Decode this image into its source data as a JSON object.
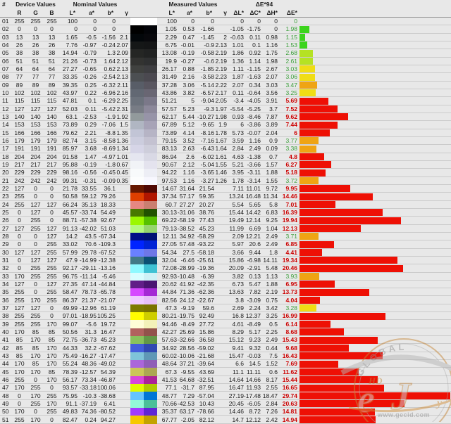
{
  "header": {
    "hash": "#",
    "group_labels": [
      "Device Values",
      "Nominal Values",
      "Measured Values",
      "ΔE*94"
    ],
    "sub": [
      "R",
      "G",
      "B",
      "L*",
      "a*",
      "b*",
      "γ",
      "L*",
      "a*",
      "b*",
      "γ",
      "ΔL*",
      "ΔC*",
      "ΔH*",
      "ΔE*"
    ]
  },
  "colors": {
    "bar_green": "#3cd41d",
    "bar_yellowgreen": "#b5e223",
    "bar_yellow": "#f0dd15",
    "bar_orange": "#efa414",
    "bar_red": "#ee1005",
    "de_good_text": "#3a9e3a",
    "de_bad_text": "#cc0000",
    "row_line": "#cbcbcb"
  },
  "rows": [
    [
      "01",
      "255",
      "255",
      "255",
      "100",
      "0",
      "0",
      "",
      "100",
      "0",
      "0",
      "",
      "0",
      "0",
      "0",
      "0"
    ],
    [
      "02",
      "0",
      "0",
      "0",
      "0",
      "0",
      "0",
      "",
      "1.05",
      "0.53",
      "-1.66",
      "",
      "-1.05",
      "-1.75",
      "0",
      "1.98"
    ],
    [
      "03",
      "13",
      "13",
      "13",
      "1.65",
      "-0.5",
      "-1.56",
      "2.1",
      "2.29",
      "0.47",
      "-1.45",
      "2",
      "-0.63",
      "0.11",
      "0.98",
      "1.15"
    ],
    [
      "04",
      "26",
      "26",
      "26",
      "7.76",
      "-0.97",
      "-0.24",
      "2.07",
      "6.75",
      "-0.01",
      "-0.9",
      "2.13",
      "1.01",
      "0.1",
      "1.16",
      "1.53"
    ],
    [
      "05",
      "38",
      "38",
      "38",
      "14.94",
      "-0.79",
      "1.3",
      "2.09",
      "13.08",
      "-0.19",
      "-0.58",
      "2.19",
      "1.86",
      "0.92",
      "1.75",
      "2.68"
    ],
    [
      "06",
      "51",
      "51",
      "51",
      "21.26",
      "-0.73",
      "1.64",
      "2.12",
      "19.9",
      "-0.27",
      "-0.6",
      "2.19",
      "1.36",
      "1.14",
      "1.98",
      "2.61"
    ],
    [
      "07",
      "64",
      "64",
      "64",
      "27.27",
      "-0.65",
      "0.62",
      "2.13",
      "26.17",
      "0.88",
      "-1.85",
      "2.19",
      "1.11",
      "-1.15",
      "2.67",
      "3.03"
    ],
    [
      "08",
      "77",
      "77",
      "77",
      "33.35",
      "-0.26",
      "-2.54",
      "2.13",
      "31.49",
      "2.16",
      "-3.58",
      "2.23",
      "1.87",
      "-1.63",
      "2.07",
      "3.06"
    ],
    [
      "09",
      "89",
      "89",
      "89",
      "39.35",
      "0.25",
      "-6.32",
      "2.11",
      "37.28",
      "3.06",
      "-5.14",
      "2.22",
      "2.07",
      "0.34",
      "3.03",
      "3.47"
    ],
    [
      "10",
      "102",
      "102",
      "102",
      "43.97",
      "0.22",
      "-6.96",
      "2.16",
      "43.86",
      "3.82",
      "-6.57",
      "2.17",
      "0.11",
      "-0.64",
      "3.56",
      "3.25"
    ],
    [
      "11",
      "115",
      "115",
      "115",
      "47.81",
      "0.1",
      "-6.29",
      "2.25",
      "51.21",
      "5",
      "-9.04",
      "2.05",
      "-3.4",
      "-4.05",
      "3.91",
      "5.69"
    ],
    [
      "12",
      "127",
      "127",
      "127",
      "52.03",
      "0.11",
      "-5.42",
      "2.31",
      "57.57",
      "5.23",
      "-9.3",
      "1.97",
      "-5.54",
      "-5.25",
      "3.7",
      "7.52"
    ],
    [
      "13",
      "140",
      "140",
      "140",
      "63.1",
      "-2.53",
      "-1.9",
      "1.92",
      "62.17",
      "5.44",
      "-10.27",
      "1.98",
      "0.93",
      "-8.46",
      "7.87",
      "9.62"
    ],
    [
      "14",
      "153",
      "153",
      "153",
      "73.89",
      "0.29",
      "-7.06",
      "1.5",
      "67.89",
      "5.12",
      "-9.65",
      "1.9",
      "6",
      "-3.86",
      "3.89",
      "7.44"
    ],
    [
      "15",
      "166",
      "166",
      "166",
      "79.62",
      "2.21",
      "-8.8",
      "1.35",
      "73.89",
      "4.14",
      "-8.16",
      "1.78",
      "5.73",
      "-0.07",
      "2.04",
      "6"
    ],
    [
      "16",
      "179",
      "179",
      "179",
      "82.74",
      "3.15",
      "-8.58",
      "1.36",
      "79.15",
      "3.52",
      "-7.16",
      "1.67",
      "3.59",
      "1.16",
      "0.9",
      "3.77"
    ],
    [
      "17",
      "191",
      "191",
      "191",
      "85.97",
      "3.68",
      "-8.69",
      "1.34",
      "83.13",
      "2.63",
      "-6.43",
      "1.64",
      "2.84",
      "2.49",
      "0.09",
      "3.38"
    ],
    [
      "18",
      "204",
      "204",
      "204",
      "91.58",
      "1.47",
      "-4.97",
      "1.01",
      "86.94",
      "2.6",
      "-6.02",
      "1.61",
      "4.63",
      "-1.38",
      "0.7",
      "4.8"
    ],
    [
      "19",
      "217",
      "217",
      "217",
      "95.88",
      "-0.19",
      "-1.8",
      "0.67",
      "90.67",
      "2.12",
      "-5.04",
      "1.55",
      "5.21",
      "-3.66",
      "1.57",
      "6.27"
    ],
    [
      "20",
      "229",
      "229",
      "229",
      "98.16",
      "-0.56",
      "-0.45",
      "0.45",
      "94.22",
      "1.16",
      "-3.65",
      "1.46",
      "3.95",
      "-3.11",
      "1.88",
      "5.18"
    ],
    [
      "21",
      "242",
      "242",
      "242",
      "99.31",
      "-0.31",
      "-0.09",
      "0.35",
      "97.53",
      "1.16",
      "-3.27",
      "1.26",
      "1.78",
      "-3.14",
      "1.55",
      "3.72"
    ],
    [
      "22",
      "127",
      "0",
      "0",
      "21.78",
      "33.55",
      "36.1",
      "",
      "14.67",
      "31.64",
      "21.54",
      "",
      "7.11",
      "11.01",
      "9.72",
      "9.95"
    ],
    [
      "23",
      "255",
      "0",
      "0",
      "50.58",
      "59.12",
      "79.26",
      "",
      "37.34",
      "57.17",
      "59.35",
      "",
      "13.24",
      "16.48",
      "11.34",
      "14.46"
    ],
    [
      "24",
      "255",
      "127",
      "127",
      "66.24",
      "35.13",
      "18.33",
      "",
      "60.7",
      "27.27",
      "20.27",
      "",
      "5.54",
      "5.65",
      "5.8",
      "7.01"
    ],
    [
      "25",
      "0",
      "127",
      "0",
      "45.57",
      "-33.74",
      "54.49",
      "",
      "30.13",
      "-31.06",
      "38.76",
      "",
      "15.44",
      "14.42",
      "6.83",
      "16.39"
    ],
    [
      "26",
      "0",
      "255",
      "0",
      "88.71",
      "-57.38",
      "92.67",
      "",
      "69.22",
      "-58.19",
      "77.43",
      "",
      "19.49",
      "12.14",
      "9.25",
      "19.94"
    ],
    [
      "27",
      "127",
      "255",
      "127",
      "91.13",
      "-42.02",
      "51.03",
      "",
      "79.13",
      "-38.52",
      "45.23",
      "",
      "11.99",
      "6.69",
      "1.04",
      "12.13"
    ],
    [
      "28",
      "0",
      "0",
      "127",
      "14.2",
      "43.5",
      "-67.34",
      "",
      "12.11",
      "34.92",
      "-58.29",
      "",
      "2.09",
      "12.21",
      "2.49",
      "3.71"
    ],
    [
      "29",
      "0",
      "0",
      "255",
      "33.02",
      "70.6",
      "-109.3",
      "",
      "27.05",
      "57.48",
      "-93.22",
      "",
      "5.97",
      "20.6",
      "2.49",
      "6.85"
    ],
    [
      "30",
      "127",
      "127",
      "255",
      "57.99",
      "29.78",
      "-67.52",
      "",
      "54.34",
      "27.5",
      "-58.18",
      "",
      "3.66",
      "9.44",
      "1.8",
      "4.41"
    ],
    [
      "31",
      "0",
      "127",
      "127",
      "47.9",
      "-14.99",
      "-12.38",
      "",
      "32.04",
      "-6.46",
      "-25.61",
      "",
      "15.86",
      "-6.98",
      "14.11",
      "19.34"
    ],
    [
      "32",
      "0",
      "255",
      "255",
      "92.17",
      "-29.11",
      "-13.16",
      "",
      "72.08",
      "-28.99",
      "-19.36",
      "",
      "20.09",
      "-2.91",
      "5.48",
      "20.46"
    ],
    [
      "33",
      "170",
      "255",
      "255",
      "96.75",
      "-11.14",
      "-5.46",
      "",
      "92.93",
      "-10.48",
      "-6.39",
      "",
      "3.82",
      "0.13",
      "1.13",
      "3.93"
    ],
    [
      "34",
      "127",
      "0",
      "127",
      "27.35",
      "47.14",
      "-44.84",
      "",
      "20.62",
      "41.92",
      "-42.35",
      "",
      "6.73",
      "5.47",
      "1.88",
      "6.95"
    ],
    [
      "35",
      "255",
      "0",
      "255",
      "58.47",
      "78.73",
      "-65.78",
      "",
      "44.84",
      "71.36",
      "-62.36",
      "",
      "13.63",
      "7.82",
      "2.19",
      "13.73"
    ],
    [
      "36",
      "255",
      "170",
      "255",
      "86.37",
      "21.37",
      "-21.07",
      "",
      "82.56",
      "24.12",
      "-22.67",
      "",
      "3.8",
      "-3.09",
      "0.75",
      "4.04"
    ],
    [
      "37",
      "127",
      "127",
      "0",
      "49.99",
      "-12.96",
      "61.19",
      "",
      "47.3",
      "-9.19",
      "59.6",
      "",
      "2.69",
      "2.24",
      "3.42",
      "3.28"
    ],
    [
      "38",
      "255",
      "255",
      "0",
      "97.01",
      "-18.95",
      "105.25",
      "",
      "80.21",
      "-19.75",
      "92.49",
      "",
      "16.8",
      "12.37",
      "3.25",
      "16.99"
    ],
    [
      "39",
      "255",
      "255",
      "170",
      "99.07",
      "-5.6",
      "19.72",
      "",
      "94.46",
      "-8.49",
      "27.72",
      "",
      "4.61",
      "-8.49",
      "0.5",
      "6.14"
    ],
    [
      "40",
      "170",
      "85",
      "85",
      "50.56",
      "31.3",
      "16.47",
      "",
      "42.27",
      "25.69",
      "15.86",
      "",
      "8.29",
      "5.17",
      "2.25",
      "8.68"
    ],
    [
      "41",
      "85",
      "170",
      "85",
      "72.75",
      "-36.73",
      "45.23",
      "",
      "57.63",
      "-32.66",
      "36.58",
      "",
      "15.12",
      "9.23",
      "2.49",
      "15.43"
    ],
    [
      "42",
      "85",
      "85",
      "170",
      "44.33",
      "32.2",
      "-67.62",
      "",
      "34.92",
      "28.56",
      "-59.02",
      "",
      "9.41",
      "9.32",
      "0.44",
      "9.68"
    ],
    [
      "43",
      "85",
      "170",
      "170",
      "75.49",
      "-16.27",
      "-17.47",
      "",
      "60.02",
      "-10.06",
      "-21.68",
      "",
      "15.47",
      "-0.03",
      "7.5",
      "16.43"
    ],
    [
      "44",
      "170",
      "85",
      "170",
      "55.24",
      "48.36",
      "-49.02",
      "",
      "48.64",
      "37.21",
      "-39.64",
      "",
      "6.6",
      "14.5",
      "1.52",
      "7.69"
    ],
    [
      "45",
      "170",
      "170",
      "85",
      "78.39",
      "-12.57",
      "54.39",
      "",
      "67.3",
      "-9.55",
      "43.69",
      "",
      "11.1",
      "11.11",
      "0.6",
      "11.62"
    ],
    [
      "46",
      "255",
      "0",
      "170",
      "56.17",
      "73.34",
      "-46.87",
      "",
      "41.53",
      "64.68",
      "-32.51",
      "",
      "14.64",
      "14.66",
      "8.17",
      "15.44"
    ],
    [
      "47",
      "170",
      "255",
      "0",
      "93.57",
      "-33.18",
      "100.06",
      "",
      "77.1",
      "-31.7",
      "87.95",
      "",
      "16.47",
      "11.93",
      "2.55",
      "16.65"
    ],
    [
      "48",
      "0",
      "170",
      "255",
      "75.95",
      "-10.3",
      "-38.68",
      "",
      "48.77",
      "7.29",
      "-57.04",
      "",
      "27.19",
      "-17.48",
      "18.47",
      "29.74"
    ],
    [
      "49",
      "0",
      "255",
      "170",
      "91.1",
      "-37.19",
      "6.41",
      "",
      "70.66",
      "-42.53",
      "10.43",
      "",
      "20.45",
      "-6.05",
      "2.84",
      "20.63"
    ],
    [
      "50",
      "170",
      "0",
      "255",
      "49.83",
      "74.36",
      "-80.52",
      "",
      "35.37",
      "63.17",
      "-78.66",
      "",
      "14.46",
      "8.72",
      "7.26",
      "14.81"
    ],
    [
      "51",
      "255",
      "170",
      "0",
      "82.47",
      "0.24",
      "94.27",
      "",
      "67.77",
      "-2.05",
      "82.12",
      "",
      "14.7",
      "12.12",
      "2.42",
      "14.94"
    ]
  ],
  "watermark": {
    "brand": "GLOBAL",
    "url": "www.gecid.com",
    "accent": "#c6873b"
  }
}
